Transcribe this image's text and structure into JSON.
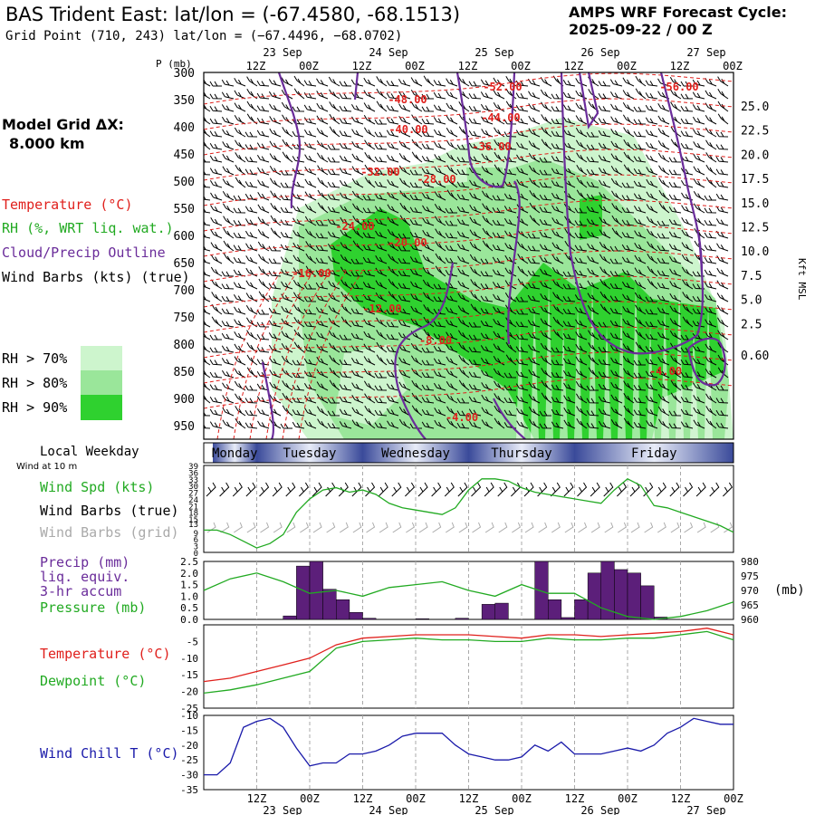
{
  "header": {
    "title": "BAS Trident East:  lat/lon = (-67.4580, -68.1513)",
    "grid_point": "Grid Point (710, 243) lat/lon = (−67.4496, −68.0702)",
    "forecast_cycle_label": "AMPS WRF Forecast Cycle:",
    "forecast_cycle_value": "2025-09-22 / 00  Z"
  },
  "left_panel": {
    "model_grid_label": "Model Grid ΔX:",
    "model_grid_value": "8.000 km",
    "legend": [
      {
        "label": "Temperature (°C)",
        "color": "#e0201c"
      },
      {
        "label": "RH (%, WRT liq. wat.)",
        "color": "#22aa22"
      },
      {
        "label": "Cloud/Precip Outline",
        "color": "#6a2c9a"
      },
      {
        "label": "Wind Barbs (kts) (true)",
        "color": "#000000"
      }
    ],
    "rh_thresholds": [
      {
        "label": "RH > 70%",
        "color": "#cdf5cd"
      },
      {
        "label": "RH > 80%",
        "color": "#9ae69a"
      },
      {
        "label": "RH > 90%",
        "color": "#2fd12f"
      }
    ],
    "weekday_label": "Local Weekday",
    "wind_at": "Wind at 10 m",
    "wind_legend": [
      {
        "label": "Wind Spd (kts)",
        "color": "#22aa22"
      },
      {
        "label": "Wind Barbs (true)",
        "color": "#000000"
      },
      {
        "label": "Wind Barbs (grid)",
        "color": "#aaaaaa"
      }
    ],
    "precip_legend": [
      {
        "label": "Precip (mm)",
        "color": "#6a2c9a"
      },
      {
        "label": "liq. equiv.",
        "color": "#6a2c9a"
      },
      {
        "label": "3-hr accum",
        "color": "#6a2c9a"
      },
      {
        "label": "Pressure (mb)",
        "color": "#22aa22"
      }
    ],
    "temp_legend": [
      {
        "label": "Temperature (°C)",
        "color": "#e0201c"
      },
      {
        "label": "Dewpoint (°C)",
        "color": "#22aa22"
      }
    ],
    "windchill_legend": {
      "label": "Wind Chill T (°C)",
      "color": "#1a1aaa"
    }
  },
  "chart_data": [
    {
      "type": "heatmap",
      "name": "time-height cross section",
      "y_axis_label_left": "P (mb)",
      "y_axis_label_right": "Kft MSL",
      "pressure_ticks": [
        "300",
        "350",
        "400",
        "450",
        "500",
        "550",
        "600",
        "650",
        "700",
        "750",
        "800",
        "850",
        "900",
        "950"
      ],
      "kft_ticks": [
        "25.0",
        "22.5",
        "20.0",
        "17.5",
        "15.0",
        "12.5",
        "10.0",
        "7.5",
        "5.0",
        "2.5",
        "0.60"
      ],
      "time_ticks": [
        "12Z",
        "00Z",
        "12Z",
        "00Z",
        "12Z",
        "00Z",
        "12Z",
        "00Z",
        "12Z",
        "00Z"
      ],
      "date_ticks": [
        "23 Sep",
        "24 Sep",
        "25 Sep",
        "26 Sep",
        "27 Sep"
      ],
      "temperature_contour_labels": [
        "-52.00",
        "-48.00",
        "-44.00",
        "-40.00",
        "-36.00",
        "-32.00",
        "-28.00",
        "-24.00",
        "-20.00",
        "-16.00",
        "-12.00",
        "-8.00",
        "-4.00",
        "-4.00",
        "-56.00"
      ]
    },
    {
      "type": "table",
      "name": "local weekday bar",
      "days": [
        "Monday",
        "Tuesday",
        "Wednesday",
        "Thursday",
        "Friday"
      ]
    },
    {
      "type": "line",
      "name": "wind speed",
      "ylim": [
        0,
        39
      ],
      "yticks": [
        "39",
        "36",
        "33",
        "30",
        "27",
        "24",
        "21",
        "18",
        "15",
        "13",
        "9",
        "6",
        "3",
        "0"
      ],
      "x_hours": [
        0,
        3,
        6,
        9,
        12,
        15,
        18,
        21,
        24,
        27,
        30,
        33,
        36,
        39,
        42,
        45,
        48,
        51,
        54,
        57,
        60,
        63,
        66,
        69,
        72,
        75,
        78,
        81,
        84,
        87,
        90,
        93,
        96,
        99,
        102,
        105,
        108,
        111,
        114,
        117,
        120
      ],
      "values": [
        10,
        10,
        8,
        5,
        2,
        4,
        8,
        18,
        24,
        28,
        29,
        27,
        28,
        26,
        22,
        20,
        19,
        18,
        17,
        20,
        28,
        33,
        33,
        32,
        29,
        27,
        26,
        25,
        24,
        23,
        22,
        28,
        33,
        30,
        21,
        20,
        18,
        16,
        14,
        12,
        9
      ]
    },
    {
      "type": "bar",
      "name": "precipitation and pressure",
      "ylim": [
        0,
        2.5
      ],
      "yticks": [
        "2.5",
        "2.0",
        "1.5",
        "1.0",
        "0.5",
        "0.0"
      ],
      "pressure_ticks": [
        "980",
        "975",
        "970",
        "965",
        "960"
      ],
      "pressure_unit": "(mb)",
      "precip_x_hours": [
        0,
        3,
        6,
        9,
        12,
        15,
        18,
        21,
        24,
        27,
        30,
        33,
        36,
        39,
        42,
        45,
        48,
        51,
        54,
        57,
        60,
        63,
        66,
        69,
        72,
        75,
        78,
        81,
        84,
        87,
        90,
        93,
        96,
        99,
        102,
        105,
        108,
        111,
        114,
        117
      ],
      "precip_values": [
        0,
        0,
        0,
        0,
        0,
        0,
        0.15,
        2.3,
        2.5,
        1.3,
        0.85,
        0.3,
        0.05,
        0,
        0,
        0,
        0.03,
        0,
        0,
        0.05,
        0,
        0.65,
        0.7,
        0,
        0,
        2.5,
        0.85,
        0.08,
        0.85,
        2.0,
        2.5,
        2.15,
        2.0,
        1.45,
        0.1,
        0,
        0,
        0,
        0,
        0
      ],
      "pressure_x_hours": [
        0,
        6,
        12,
        18,
        24,
        30,
        36,
        42,
        48,
        54,
        60,
        66,
        72,
        78,
        84,
        90,
        96,
        102,
        108,
        114,
        120
      ],
      "pressure_values": [
        970,
        974,
        976,
        973,
        969,
        970,
        968,
        971,
        972,
        973,
        970,
        968,
        972,
        969,
        969,
        964,
        961,
        960,
        961,
        963,
        966
      ]
    },
    {
      "type": "line",
      "name": "temperature and dewpoint",
      "ylim": [
        -25,
        0
      ],
      "yticks": [
        "-5",
        "-10",
        "-15",
        "-20",
        "-25"
      ],
      "x_hours": [
        0,
        6,
        12,
        18,
        24,
        30,
        36,
        42,
        48,
        54,
        60,
        66,
        72,
        78,
        84,
        90,
        96,
        102,
        108,
        114,
        120
      ],
      "series": [
        {
          "name": "Temperature",
          "color": "#e0201c",
          "values": [
            -17,
            -16,
            -14,
            -12,
            -10,
            -6,
            -4,
            -3.5,
            -3,
            -3,
            -3,
            -3.5,
            -4,
            -3,
            -3,
            -3.5,
            -3,
            -2.5,
            -2,
            -1,
            -3
          ]
        },
        {
          "name": "Dewpoint",
          "color": "#22aa22",
          "values": [
            -20.5,
            -19.5,
            -18,
            -16,
            -14,
            -7,
            -5,
            -4.5,
            -4,
            -4.5,
            -4.5,
            -5,
            -5,
            -4,
            -4.5,
            -4.5,
            -4,
            -4,
            -3,
            -2,
            -4.5
          ]
        }
      ]
    },
    {
      "type": "line",
      "name": "wind chill",
      "ylim": [
        -35,
        -10
      ],
      "yticks": [
        "-10",
        "-15",
        "-20",
        "-25",
        "-30",
        "-35"
      ],
      "x_hours": [
        0,
        3,
        6,
        9,
        12,
        15,
        18,
        21,
        24,
        27,
        30,
        33,
        36,
        39,
        42,
        45,
        48,
        51,
        54,
        57,
        60,
        63,
        66,
        69,
        72,
        75,
        78,
        81,
        84,
        87,
        90,
        93,
        96,
        99,
        102,
        105,
        108,
        111,
        114,
        117,
        120
      ],
      "values": [
        -30,
        -30,
        -26,
        -14,
        -12,
        -11,
        -14,
        -21,
        -27,
        -26,
        -26,
        -23,
        -23,
        -22,
        -20,
        -17,
        -16,
        -16,
        -16,
        -20,
        -23,
        -24,
        -25,
        -25,
        -24,
        -20,
        -22,
        -19,
        -23,
        -23,
        -23,
        -22,
        -21,
        -22,
        -20,
        -16,
        -14,
        -11,
        -12,
        -13,
        -13
      ],
      "color": "#1a1aaa",
      "time_ticks": [
        "12Z",
        "00Z",
        "12Z",
        "00Z",
        "12Z",
        "00Z",
        "12Z",
        "00Z",
        "12Z",
        "00Z"
      ],
      "date_ticks": [
        "23 Sep",
        "24 Sep",
        "25 Sep",
        "26 Sep",
        "27 Sep"
      ]
    }
  ]
}
